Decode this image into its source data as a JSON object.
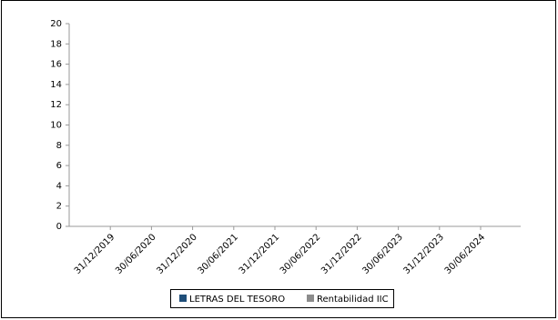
{
  "chart_data": {
    "type": "line",
    "categories": [
      "31/12/2019",
      "30/06/2020",
      "31/12/2020",
      "30/06/2021",
      "31/12/2021",
      "30/06/2022",
      "31/12/2022",
      "30/06/2023",
      "31/12/2023",
      "30/06/2024"
    ],
    "series": [
      {
        "name": "LETRAS DEL TESORO",
        "color": "#1f4e79",
        "values": [
          null,
          null,
          null,
          null,
          null,
          null,
          null,
          null,
          null,
          null
        ]
      },
      {
        "name": "Rentabilidad IIC",
        "color": "#8c8c8c",
        "values": [
          null,
          null,
          null,
          null,
          null,
          null,
          null,
          null,
          null,
          null
        ]
      }
    ],
    "ylim": [
      0,
      20
    ],
    "yticks": [
      0,
      2,
      4,
      6,
      8,
      10,
      12,
      14,
      16,
      18,
      20
    ],
    "grid": false
  }
}
